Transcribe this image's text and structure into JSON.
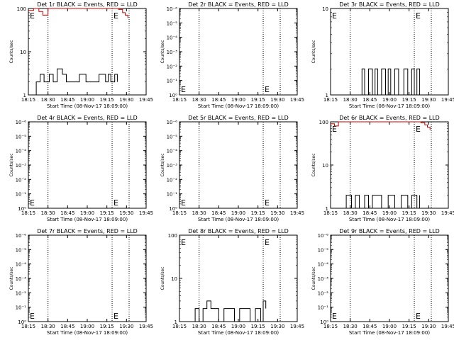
{
  "chart_data": [
    {
      "type": "line",
      "title": "Det 1r BLACK = Events, RED = LLD",
      "xlabel": "Start Time (08-Nov-17 18:09:00)",
      "ylabel": "Counts/sec",
      "yscale": "log",
      "ylim": [
        1,
        100
      ],
      "ytick_labels": [
        "1",
        "10",
        "100"
      ],
      "x_tick_labels": [
        "18:15",
        "18:30",
        "18:45",
        "19:00",
        "19:15",
        "19:30",
        "19:45"
      ],
      "xlim_min": [
        6,
        51
      ],
      "vlines_min": [
        21,
        70,
        83
      ],
      "event_markers": [
        {
          "label": "E",
          "x_min": 6
        },
        {
          "label": "E",
          "x_min": 70
        }
      ],
      "series": [
        {
          "color": "#000000",
          "x_min": [
            10,
            12,
            15,
            18,
            22,
            25,
            28,
            32,
            35,
            38,
            42,
            45,
            50,
            55,
            60,
            65,
            67,
            69,
            72,
            74
          ],
          "values": [
            1,
            2,
            3,
            2,
            3,
            2,
            4,
            3,
            2,
            2,
            2,
            3,
            2,
            2,
            3,
            2,
            3,
            2,
            3,
            2
          ]
        },
        {
          "color": "#cc0000",
          "x_min": [
            6,
            10,
            14,
            17,
            21,
            26,
            32,
            38,
            44,
            50,
            56,
            62,
            68,
            72,
            75,
            78,
            80,
            82
          ],
          "values": [
            90,
            100,
            85,
            70,
            100,
            100,
            100,
            100,
            100,
            100,
            100,
            100,
            100,
            100,
            95,
            80,
            70,
            60
          ]
        }
      ]
    },
    {
      "type": "line",
      "title": "Det 2r BLACK = Events, RED = LLD",
      "xlabel": "Start Time (08-Nov-17 18:09:00)",
      "ylabel": "Counts/sec",
      "yscale": "log",
      "ylim": [
        1,
        1000000
      ],
      "ytick_labels": [
        "10⁰",
        "10⁻¹",
        "10⁻²",
        "10⁻³",
        "10⁻⁴",
        "10⁻⁵",
        "10⁻⁶"
      ],
      "x_tick_labels": [
        "18:15",
        "18:30",
        "18:45",
        "19:00",
        "19:15",
        "19:30",
        "19:45"
      ],
      "vlines_min": [
        21,
        70,
        83
      ],
      "event_markers": [
        {
          "label": "E",
          "x_min": 6
        },
        {
          "label": "E",
          "x_min": 70
        }
      ],
      "series": []
    },
    {
      "type": "line",
      "title": "Det 3r BLACK = Events, RED = LLD",
      "xlabel": "Start Time (08-Nov-17 18:09:00)",
      "ylabel": "Counts/sec",
      "yscale": "log",
      "ylim": [
        1,
        10
      ],
      "ytick_labels": [
        "1",
        "10"
      ],
      "x_tick_labels": [
        "18:15",
        "18:30",
        "18:45",
        "19:00",
        "19:15",
        "19:30",
        "19:45"
      ],
      "vlines_min": [
        21,
        70,
        83
      ],
      "event_markers": [
        {
          "label": "E",
          "x_min": 6
        },
        {
          "label": "E",
          "x_min": 70
        }
      ],
      "series": [
        {
          "color": "#000000",
          "x_min": [
            28,
            30,
            32,
            35,
            38,
            40,
            42,
            45,
            48,
            50,
            52,
            55,
            58,
            62,
            65,
            68,
            70,
            72,
            74
          ],
          "values": [
            1,
            2,
            1,
            2,
            1,
            2,
            1,
            2,
            1,
            2,
            1,
            2,
            1,
            2,
            1,
            2,
            1,
            2,
            1
          ]
        }
      ]
    },
    {
      "type": "line",
      "title": "Det 4r BLACK = Events, RED = LLD",
      "xlabel": "Start Time (08-Nov-17 18:09:00)",
      "ylabel": "Counts/sec",
      "yscale": "log",
      "ylim": [
        1,
        1000000
      ],
      "ytick_labels": [
        "10⁰",
        "10⁻¹",
        "10⁻²",
        "10⁻³",
        "10⁻⁴",
        "10⁻⁵",
        "10⁻⁶"
      ],
      "x_tick_labels": [
        "18:15",
        "18:30",
        "18:45",
        "19:00",
        "19:15",
        "19:30",
        "19:45"
      ],
      "vlines_min": [
        21,
        70,
        83
      ],
      "event_markers": [
        {
          "label": "E",
          "x_min": 6
        },
        {
          "label": "E",
          "x_min": 70
        }
      ],
      "series": []
    },
    {
      "type": "line",
      "title": "Det 5r BLACK = Events, RED = LLD",
      "xlabel": "Start Time (08-Nov-17 18:09:00)",
      "ylabel": "Counts/sec",
      "yscale": "log",
      "ylim": [
        1,
        1000000
      ],
      "ytick_labels": [
        "10⁰",
        "10⁻¹",
        "10⁻²",
        "10⁻³",
        "10⁻⁴",
        "10⁻⁵",
        "10⁻⁶"
      ],
      "x_tick_labels": [
        "18:15",
        "18:30",
        "18:45",
        "19:00",
        "19:15",
        "19:30",
        "19:45"
      ],
      "vlines_min": [
        21,
        70,
        83
      ],
      "event_markers": [
        {
          "label": "E",
          "x_min": 6
        },
        {
          "label": "E",
          "x_min": 70
        }
      ],
      "series": []
    },
    {
      "type": "line",
      "title": "Det 6r BLACK = Events, RED = LLD",
      "xlabel": "Start Time (08-Nov-17 18:09:00)",
      "ylabel": "Counts/sec",
      "yscale": "log",
      "ylim": [
        1,
        100
      ],
      "ytick_labels": [
        "1",
        "10",
        "100"
      ],
      "x_tick_labels": [
        "18:15",
        "18:30",
        "18:45",
        "19:00",
        "19:15",
        "19:30",
        "19:45"
      ],
      "vlines_min": [
        21,
        70,
        83
      ],
      "event_markers": [
        {
          "label": "E",
          "x_min": 6
        },
        {
          "label": "E",
          "x_min": 70
        }
      ],
      "series": [
        {
          "color": "#000000",
          "x_min": [
            15,
            18,
            22,
            25,
            28,
            32,
            35,
            38,
            42,
            45,
            50,
            55,
            60,
            65,
            68,
            72,
            74
          ],
          "values": [
            1,
            2,
            1,
            2,
            1,
            2,
            1,
            2,
            2,
            1,
            2,
            1,
            2,
            1,
            2,
            1,
            2
          ]
        },
        {
          "color": "#cc0000",
          "x_min": [
            6,
            9,
            12,
            16,
            20,
            26,
            32,
            38,
            44,
            50,
            56,
            62,
            68,
            72,
            75,
            78,
            80,
            82
          ],
          "values": [
            90,
            80,
            100,
            100,
            100,
            100,
            100,
            100,
            100,
            100,
            100,
            100,
            100,
            100,
            95,
            85,
            75,
            65
          ]
        }
      ]
    },
    {
      "type": "line",
      "title": "Det 7r BLACK = Events, RED = LLD",
      "xlabel": "Start Time (08-Nov-17 18:09:00)",
      "ylabel": "Counts/sec",
      "yscale": "log",
      "ylim": [
        1,
        1000000
      ],
      "ytick_labels": [
        "10⁰",
        "10⁻¹",
        "10⁻²",
        "10⁻³",
        "10⁻⁴",
        "10⁻⁵",
        "10⁻⁶"
      ],
      "x_tick_labels": [
        "18:15",
        "18:30",
        "18:45",
        "19:00",
        "19:15",
        "19:30",
        "19:45"
      ],
      "vlines_min": [
        21,
        70,
        83
      ],
      "event_markers": [
        {
          "label": "E",
          "x_min": 6
        },
        {
          "label": "E",
          "x_min": 70
        }
      ],
      "series": []
    },
    {
      "type": "line",
      "title": "Det 8r BLACK = Events, RED = LLD",
      "xlabel": "Start Time (08-Nov-17 18:09:00)",
      "ylabel": "Counts/sec",
      "yscale": "log",
      "ylim": [
        1,
        100
      ],
      "ytick_labels": [
        "1",
        "10",
        "100"
      ],
      "x_tick_labels": [
        "18:15",
        "18:30",
        "18:45",
        "19:00",
        "19:15",
        "19:30",
        "19:45"
      ],
      "vlines_min": [
        21,
        70,
        83
      ],
      "event_markers": [
        {
          "label": "E",
          "x_min": 6
        },
        {
          "label": "E",
          "x_min": 70
        }
      ],
      "series": [
        {
          "color": "#000000",
          "x_min": [
            15,
            18,
            21,
            24,
            27,
            30,
            33,
            36,
            40,
            44,
            48,
            52,
            56,
            60,
            64,
            68,
            70,
            72
          ],
          "values": [
            1,
            2,
            1,
            2,
            3,
            2,
            2,
            1,
            2,
            2,
            1,
            2,
            2,
            1,
            2,
            1,
            3,
            2
          ]
        }
      ]
    },
    {
      "type": "line",
      "title": "Det 9r BLACK = Events, RED = LLD",
      "xlabel": "Start Time (08-Nov-17 18:09:00)",
      "ylabel": "Counts/sec",
      "yscale": "log",
      "ylim": [
        1,
        1000000
      ],
      "ytick_labels": [
        "10⁰",
        "10⁻¹",
        "10⁻²",
        "10⁻³",
        "10⁻⁴",
        "10⁻⁵",
        "10⁻⁶"
      ],
      "x_tick_labels": [
        "18:15",
        "18:30",
        "18:45",
        "19:00",
        "19:15",
        "19:30",
        "19:45"
      ],
      "vlines_min": [
        21,
        70,
        83
      ],
      "event_markers": [
        {
          "label": "E",
          "x_min": 6
        },
        {
          "label": "E",
          "x_min": 70
        }
      ],
      "series": []
    }
  ]
}
